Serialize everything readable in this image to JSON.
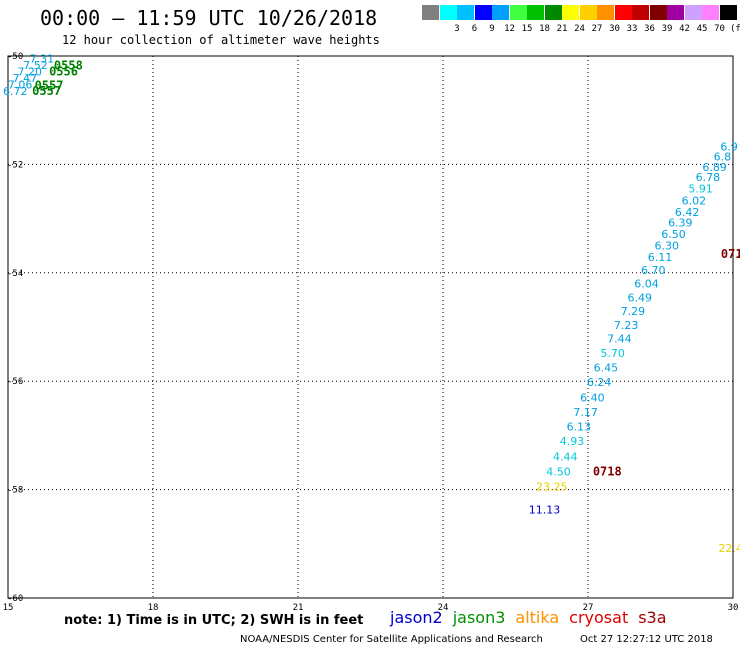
{
  "header": {
    "title": "00:00 — 11:59 UTC 10/26/2018",
    "subtitle": "12 hour collection of altimeter wave heights"
  },
  "legend": {
    "unit": "(ft)",
    "bins": [
      {
        "label": "",
        "color": "#808080"
      },
      {
        "label": "3",
        "color": "#00ffff"
      },
      {
        "label": "6",
        "color": "#00c0ff"
      },
      {
        "label": "9",
        "color": "#0000ff"
      },
      {
        "label": "12",
        "color": "#00a0ff"
      },
      {
        "label": "15",
        "color": "#40ff40"
      },
      {
        "label": "18",
        "color": "#00c000"
      },
      {
        "label": "21",
        "color": "#008800"
      },
      {
        "label": "24",
        "color": "#ffff00"
      },
      {
        "label": "27",
        "color": "#ffd000"
      },
      {
        "label": "30",
        "color": "#ff9000"
      },
      {
        "label": "33",
        "color": "#ff0000"
      },
      {
        "label": "36",
        "color": "#c00000"
      },
      {
        "label": "39",
        "color": "#800000"
      },
      {
        "label": "42",
        "color": "#a000a0"
      },
      {
        "label": "45",
        "color": "#d0a0ff"
      },
      {
        "label": "70",
        "color": "#ff80ff"
      },
      {
        "label": "",
        "color": "#000000"
      }
    ]
  },
  "chart_data": {
    "type": "scatter",
    "xlim": [
      15,
      30
    ],
    "ylim": [
      -60,
      -50
    ],
    "xticks": [
      "15",
      "18",
      "21",
      "24",
      "27",
      "30"
    ],
    "yticks": [
      "-50",
      "-52",
      "-54",
      "-56",
      "-58",
      "-60"
    ],
    "grid": true,
    "points": [
      {
        "x": 15.15,
        "y": -50.72,
        "label": "6.72",
        "color": "#00a0e0"
      },
      {
        "x": 15.25,
        "y": -50.6,
        "label": "7.06",
        "color": "#00a0e0"
      },
      {
        "x": 15.35,
        "y": -50.48,
        "label": "7.47",
        "color": "#00a0e0"
      },
      {
        "x": 15.45,
        "y": -50.36,
        "label": "7.20",
        "color": "#00a0e0"
      },
      {
        "x": 15.57,
        "y": -50.24,
        "label": "7.52",
        "color": "#00a0e0"
      },
      {
        "x": 15.7,
        "y": -50.12,
        "label": "7.31",
        "color": "#00a0e0"
      },
      {
        "x": 29.92,
        "y": -51.74,
        "label": "6.9",
        "color": "#00a0e0"
      },
      {
        "x": 29.78,
        "y": -51.93,
        "label": "6.8",
        "color": "#00a0e0"
      },
      {
        "x": 29.62,
        "y": -52.12,
        "label": "6.89",
        "color": "#00a0e0"
      },
      {
        "x": 29.48,
        "y": -52.31,
        "label": "6.78",
        "color": "#00a0e0"
      },
      {
        "x": 29.33,
        "y": -52.52,
        "label": "5.91",
        "color": "#00c8e0"
      },
      {
        "x": 29.19,
        "y": -52.74,
        "label": "6.02",
        "color": "#00a0e0"
      },
      {
        "x": 29.05,
        "y": -52.95,
        "label": "6.42",
        "color": "#00a0e0"
      },
      {
        "x": 28.91,
        "y": -53.15,
        "label": "6.39",
        "color": "#00a0e0"
      },
      {
        "x": 28.77,
        "y": -53.36,
        "label": "6.50",
        "color": "#00a0e0"
      },
      {
        "x": 28.63,
        "y": -53.57,
        "label": "6.30",
        "color": "#00a0e0"
      },
      {
        "x": 28.49,
        "y": -53.78,
        "label": "6.11",
        "color": "#00a0e0"
      },
      {
        "x": 28.35,
        "y": -54.02,
        "label": "6.70",
        "color": "#00a0e0"
      },
      {
        "x": 28.21,
        "y": -54.27,
        "label": "6.04",
        "color": "#00a0e0"
      },
      {
        "x": 28.07,
        "y": -54.53,
        "label": "6.49",
        "color": "#00a0e0"
      },
      {
        "x": 27.93,
        "y": -54.78,
        "label": "7.29",
        "color": "#00a0e0"
      },
      {
        "x": 27.79,
        "y": -55.04,
        "label": "7.23",
        "color": "#00a0e0"
      },
      {
        "x": 27.65,
        "y": -55.29,
        "label": "7.44",
        "color": "#00a0e0"
      },
      {
        "x": 27.51,
        "y": -55.55,
        "label": "5.70",
        "color": "#00c8e0"
      },
      {
        "x": 27.37,
        "y": -55.82,
        "label": "6.45",
        "color": "#00a0e0"
      },
      {
        "x": 27.23,
        "y": -56.09,
        "label": "6.24",
        "color": "#00a0e0"
      },
      {
        "x": 27.09,
        "y": -56.37,
        "label": "6.40",
        "color": "#00a0e0"
      },
      {
        "x": 26.95,
        "y": -56.64,
        "label": "7.17",
        "color": "#00a0e0"
      },
      {
        "x": 26.81,
        "y": -56.91,
        "label": "6.13",
        "color": "#00a0e0"
      },
      {
        "x": 26.67,
        "y": -57.18,
        "label": "4.93",
        "color": "#00c8e0"
      },
      {
        "x": 26.53,
        "y": -57.46,
        "label": "4.44",
        "color": "#00c8e0"
      },
      {
        "x": 26.39,
        "y": -57.74,
        "label": "4.50",
        "color": "#00c8e0"
      },
      {
        "x": 26.25,
        "y": -58.02,
        "label": "23.25",
        "color": "#e8d000"
      },
      {
        "x": 26.1,
        "y": -58.44,
        "label": "11.13",
        "color": "#0000c0"
      },
      {
        "x": 29.95,
        "y": -59.15,
        "label": "22.4",
        "color": "#e8d000"
      }
    ],
    "annotations": [
      {
        "x": 15.95,
        "y": -50.25,
        "label": "0558",
        "color": "#008000"
      },
      {
        "x": 15.85,
        "y": -50.36,
        "label": "0556",
        "color": "#008000"
      },
      {
        "x": 15.55,
        "y": -50.62,
        "label": "0557",
        "color": "#008000"
      },
      {
        "x": 15.5,
        "y": -50.72,
        "label": "0557",
        "color": "#008000"
      },
      {
        "x": 29.75,
        "y": -53.73,
        "label": "071",
        "color": "#800000"
      },
      {
        "x": 27.1,
        "y": -57.74,
        "label": "0718",
        "color": "#800000"
      }
    ]
  },
  "footer": {
    "note": "note: 1) Time is in UTC; 2) SWH is in feet",
    "satellites": [
      {
        "name": "jason2",
        "color": "#0000cc"
      },
      {
        "name": "jason3",
        "color": "#009000"
      },
      {
        "name": "altika",
        "color": "#ff9000"
      },
      {
        "name": "cryosat",
        "color": "#e00000"
      },
      {
        "name": "s3a",
        "color": "#a00000"
      }
    ],
    "credit": "NOAA/NESDIS Center for Satellite Applications and Research",
    "timestamp": "Oct 27 12:27:12 UTC 2018"
  }
}
